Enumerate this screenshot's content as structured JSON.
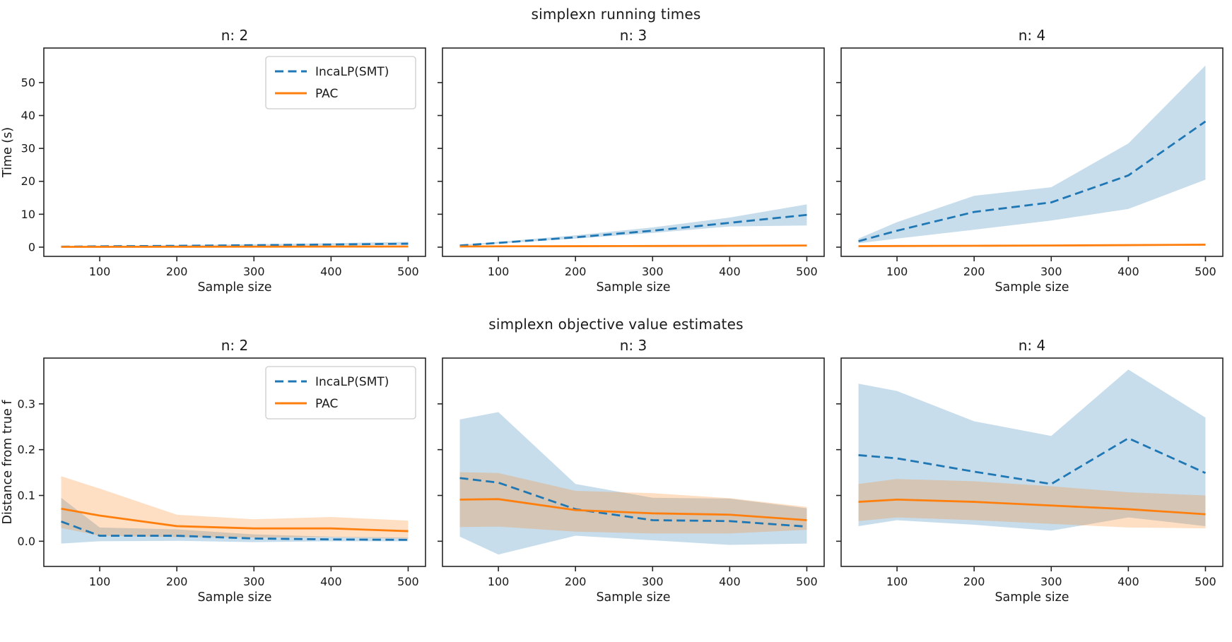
{
  "rows": [
    {
      "title": "simplexn running times",
      "ylabel": "Time (s)",
      "xlabel": "Sample size",
      "ylim": [
        -2.8,
        60.5
      ],
      "yticks": [
        0,
        10,
        20,
        30,
        40,
        50
      ],
      "ytick_decimals": 0,
      "xlim": [
        27.5,
        522.5
      ],
      "xticks": [
        100,
        200,
        300,
        400,
        500
      ],
      "grid": false,
      "legend_position": "upper right inside first subplot"
    },
    {
      "title": "simplexn objective value estimates",
      "ylabel": "Distance from true f",
      "xlabel": "Sample size",
      "ylim": [
        -0.055,
        0.4
      ],
      "yticks": [
        0.0,
        0.1,
        0.2,
        0.3
      ],
      "ytick_decimals": 1,
      "xlim": [
        27.5,
        522.5
      ],
      "xticks": [
        100,
        200,
        300,
        400,
        500
      ],
      "grid": false,
      "legend_position": "upper right inside first subplot"
    }
  ],
  "legend": {
    "items": [
      {
        "label": "IncaLP(SMT)",
        "color": "#1f77b4",
        "dashed": true
      },
      {
        "label": "PAC",
        "color": "#ff7f0e",
        "dashed": false
      }
    ]
  },
  "colors": {
    "incalp_line": "#1f77b4",
    "pac_line": "#ff7f0e",
    "band_alpha": 0.25,
    "axis": "#262626",
    "legend_border": "#cccccc"
  },
  "chart_data": [
    {
      "type": "line",
      "row": 0,
      "title": "n: 2",
      "x": [
        50,
        100,
        200,
        300,
        400,
        500
      ],
      "series": [
        {
          "name": "IncaLP(SMT)",
          "values": [
            0.15,
            0.25,
            0.4,
            0.6,
            0.8,
            1.05
          ],
          "band_lower": [
            0.05,
            0.15,
            0.25,
            0.4,
            0.55,
            0.7
          ],
          "band_upper": [
            0.25,
            0.4,
            0.6,
            0.9,
            1.2,
            1.6
          ]
        },
        {
          "name": "PAC",
          "values": [
            0.1,
            0.1,
            0.12,
            0.15,
            0.18,
            0.2
          ],
          "band_lower": [
            0.05,
            0.05,
            0.07,
            0.1,
            0.12,
            0.13
          ],
          "band_upper": [
            0.15,
            0.17,
            0.2,
            0.22,
            0.26,
            0.3
          ]
        }
      ],
      "show_y_labels": true,
      "show_legend": true
    },
    {
      "type": "line",
      "row": 0,
      "title": "n: 3",
      "x": [
        50,
        100,
        200,
        300,
        400,
        500
      ],
      "series": [
        {
          "name": "IncaLP(SMT)",
          "values": [
            0.5,
            1.3,
            3.0,
            5.0,
            7.4,
            9.8
          ],
          "band_lower": [
            0.4,
            1.1,
            2.6,
            4.3,
            6.3,
            6.6
          ],
          "band_upper": [
            0.7,
            1.6,
            3.6,
            6.0,
            9.0,
            13.0
          ]
        },
        {
          "name": "PAC",
          "values": [
            0.2,
            0.25,
            0.3,
            0.35,
            0.42,
            0.5
          ],
          "band_lower": [
            0.12,
            0.17,
            0.22,
            0.27,
            0.33,
            0.4
          ],
          "band_upper": [
            0.3,
            0.35,
            0.4,
            0.45,
            0.52,
            0.62
          ]
        }
      ],
      "show_y_labels": false,
      "show_legend": false
    },
    {
      "type": "line",
      "row": 0,
      "title": "n: 4",
      "x": [
        50,
        100,
        200,
        300,
        400,
        500
      ],
      "series": [
        {
          "name": "IncaLP(SMT)",
          "values": [
            1.8,
            5.0,
            10.7,
            13.6,
            21.8,
            38.2
          ],
          "band_lower": [
            1.2,
            2.6,
            5.3,
            8.1,
            11.6,
            20.5
          ],
          "band_upper": [
            2.6,
            7.6,
            15.6,
            18.2,
            31.5,
            55.2
          ]
        },
        {
          "name": "PAC",
          "values": [
            0.3,
            0.35,
            0.42,
            0.5,
            0.62,
            0.75
          ],
          "band_lower": [
            0.2,
            0.25,
            0.3,
            0.36,
            0.45,
            0.55
          ],
          "band_upper": [
            0.4,
            0.5,
            0.6,
            0.7,
            0.85,
            1.0
          ]
        }
      ],
      "show_y_labels": false,
      "show_legend": false
    },
    {
      "type": "line",
      "row": 1,
      "title": "n: 2",
      "x": [
        50,
        100,
        200,
        300,
        400,
        500
      ],
      "series": [
        {
          "name": "IncaLP(SMT)",
          "values": [
            0.043,
            0.012,
            0.012,
            0.006,
            0.004,
            0.003
          ],
          "band_lower": [
            -0.005,
            0.0,
            0.001,
            -0.002,
            0.0,
            0.0
          ],
          "band_upper": [
            0.095,
            0.03,
            0.026,
            0.015,
            0.01,
            0.008
          ]
        },
        {
          "name": "PAC",
          "values": [
            0.071,
            0.056,
            0.033,
            0.028,
            0.028,
            0.022
          ],
          "band_lower": [
            0.029,
            0.012,
            0.009,
            0.008,
            0.009,
            0.006
          ],
          "band_upper": [
            0.142,
            0.115,
            0.058,
            0.048,
            0.053,
            0.045
          ]
        }
      ],
      "show_y_labels": true,
      "show_legend": true
    },
    {
      "type": "line",
      "row": 1,
      "title": "n: 3",
      "x": [
        50,
        100,
        200,
        300,
        400,
        500
      ],
      "series": [
        {
          "name": "IncaLP(SMT)",
          "values": [
            0.138,
            0.128,
            0.07,
            0.046,
            0.044,
            0.032
          ],
          "band_lower": [
            0.01,
            -0.029,
            0.012,
            0.002,
            -0.008,
            -0.005
          ],
          "band_upper": [
            0.266,
            0.282,
            0.125,
            0.095,
            0.093,
            0.072
          ]
        },
        {
          "name": "PAC",
          "values": [
            0.091,
            0.092,
            0.068,
            0.061,
            0.058,
            0.046
          ],
          "band_lower": [
            0.031,
            0.032,
            0.021,
            0.017,
            0.017,
            0.025
          ],
          "band_upper": [
            0.151,
            0.149,
            0.11,
            0.105,
            0.094,
            0.075
          ]
        }
      ],
      "show_y_labels": false,
      "show_legend": false
    },
    {
      "type": "line",
      "row": 1,
      "title": "n: 4",
      "x": [
        50,
        100,
        200,
        300,
        400,
        500
      ],
      "series": [
        {
          "name": "IncaLP(SMT)",
          "values": [
            0.188,
            0.181,
            0.152,
            0.125,
            0.225,
            0.149
          ],
          "band_lower": [
            0.033,
            0.046,
            0.036,
            0.023,
            0.052,
            0.033
          ],
          "band_upper": [
            0.344,
            0.328,
            0.262,
            0.23,
            0.375,
            0.27
          ]
        },
        {
          "name": "PAC",
          "values": [
            0.086,
            0.091,
            0.086,
            0.078,
            0.07,
            0.059
          ],
          "band_lower": [
            0.044,
            0.052,
            0.046,
            0.038,
            0.03,
            0.028
          ],
          "band_upper": [
            0.125,
            0.136,
            0.131,
            0.12,
            0.107,
            0.1
          ]
        }
      ],
      "show_y_labels": false,
      "show_legend": false
    }
  ]
}
